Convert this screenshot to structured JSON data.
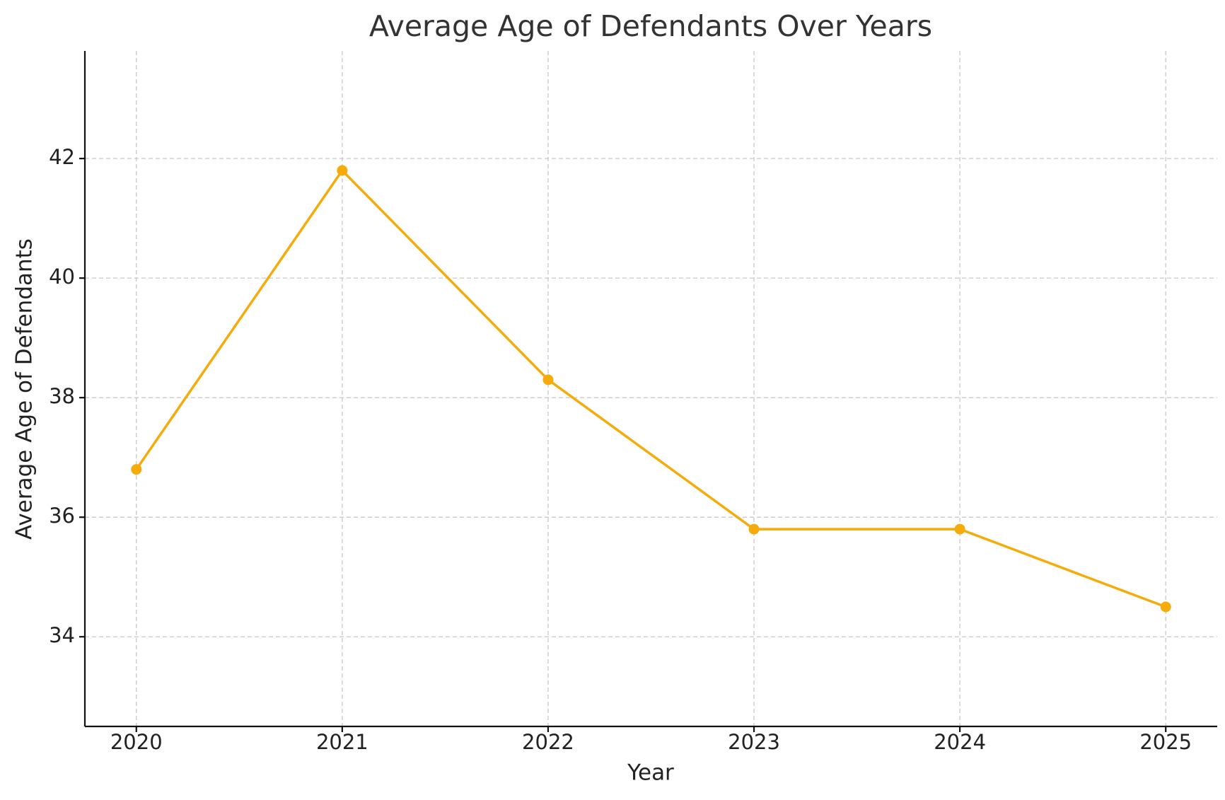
{
  "chart_data": {
    "type": "line",
    "title": "Average Age of Defendants Over Years",
    "x_label": "Year",
    "y_label": "Average Age of Defendants",
    "x": [
      2020,
      2021,
      2022,
      2023,
      2024,
      2025
    ],
    "series": [
      {
        "name": "Average Age of Defendants",
        "color": "#f5ab0a",
        "values": [
          36.8,
          41.8,
          38.3,
          35.8,
          35.8,
          34.5
        ]
      }
    ],
    "xlim": [
      2019.75,
      2025.25
    ],
    "xticks": [
      2020,
      2021,
      2022,
      2023,
      2024,
      2025
    ],
    "ylim": [
      32.5,
      43.8
    ],
    "yticks": [
      34,
      36,
      38,
      40,
      42
    ],
    "grid": true
  }
}
